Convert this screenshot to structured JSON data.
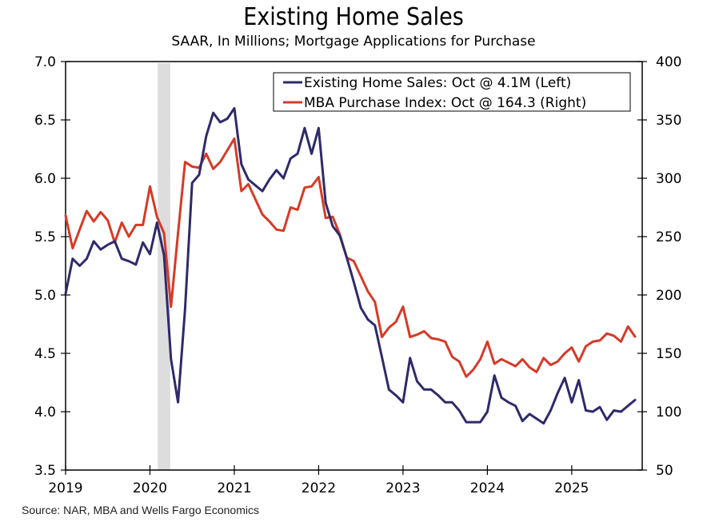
{
  "chart_data": {
    "type": "line",
    "title": "Existing Home Sales",
    "subtitle": "SAAR, In Millions; Mortgage Applications for Purchase",
    "source": "Source: NAR, MBA and Wells Fargo Economics",
    "x_start": "2019-01",
    "frequency": "monthly",
    "x_ticks": [
      "2019",
      "2020",
      "2021",
      "2022",
      "2023",
      "2024",
      "2025"
    ],
    "y_left": {
      "range": [
        3.5,
        7.0
      ],
      "ticks": [
        "7.0",
        "6.5",
        "6.0",
        "5.5",
        "5.0",
        "4.5",
        "4.0",
        "3.5"
      ],
      "tick_values": [
        7.0,
        6.5,
        6.0,
        5.5,
        5.0,
        4.5,
        4.0,
        3.5
      ]
    },
    "y_right": {
      "range": [
        50,
        400
      ],
      "ticks": [
        "400",
        "350",
        "300",
        "250",
        "200",
        "150",
        "100",
        "50"
      ],
      "tick_values": [
        400,
        350,
        300,
        250,
        200,
        150,
        100,
        50
      ]
    },
    "shaded_regions": [
      {
        "label": "recession",
        "start": "2020-02",
        "end": "2020-04",
        "color": "#dddddd"
      }
    ],
    "legend_position": "top-right",
    "series": [
      {
        "name": "Existing Home Sales: Oct @ 4.1M (Left)",
        "axis": "left",
        "color": "#2e2a6b",
        "values": [
          5.01,
          5.31,
          5.25,
          5.31,
          5.46,
          5.39,
          5.43,
          5.46,
          5.31,
          5.29,
          5.26,
          5.45,
          5.35,
          5.62,
          5.34,
          4.45,
          4.08,
          4.88,
          5.96,
          6.03,
          6.36,
          6.56,
          6.48,
          6.51,
          6.6,
          6.12,
          5.99,
          5.94,
          5.89,
          5.99,
          6.07,
          6.0,
          6.17,
          6.21,
          6.43,
          6.21,
          6.43,
          5.79,
          5.59,
          5.51,
          5.32,
          5.11,
          4.89,
          4.79,
          4.74,
          4.47,
          4.19,
          4.14,
          4.08,
          4.46,
          4.26,
          4.19,
          4.19,
          4.14,
          4.08,
          4.08,
          4.01,
          3.91,
          3.91,
          3.91,
          4.0,
          4.31,
          4.12,
          4.08,
          4.05,
          3.92,
          3.98,
          3.94,
          3.9,
          4.01,
          4.16,
          4.29,
          4.08,
          4.27,
          4.01,
          4.0,
          4.04,
          3.93,
          4.01,
          4.0,
          4.05,
          4.1
        ]
      },
      {
        "name": "MBA Purchase Index: Oct @ 164.3 (Right)",
        "axis": "right",
        "color": "#d63a27",
        "values": [
          268,
          240,
          256,
          272,
          263,
          271,
          264,
          245,
          262,
          250,
          260,
          260,
          293,
          267,
          253,
          190,
          253,
          314,
          310,
          309,
          321,
          308,
          314,
          324,
          334,
          289,
          295,
          282,
          269,
          263,
          256,
          255,
          275,
          273,
          292,
          293,
          301,
          266,
          267,
          252,
          232,
          229,
          216,
          203,
          194,
          164,
          172,
          177,
          190,
          164,
          166,
          169,
          163,
          162,
          160,
          147,
          143,
          130,
          136,
          145,
          160,
          141,
          145,
          142,
          139,
          145,
          138,
          134,
          146,
          140,
          143,
          150,
          155,
          143,
          156,
          160,
          161,
          167,
          165,
          160,
          173,
          164.3
        ]
      }
    ]
  }
}
